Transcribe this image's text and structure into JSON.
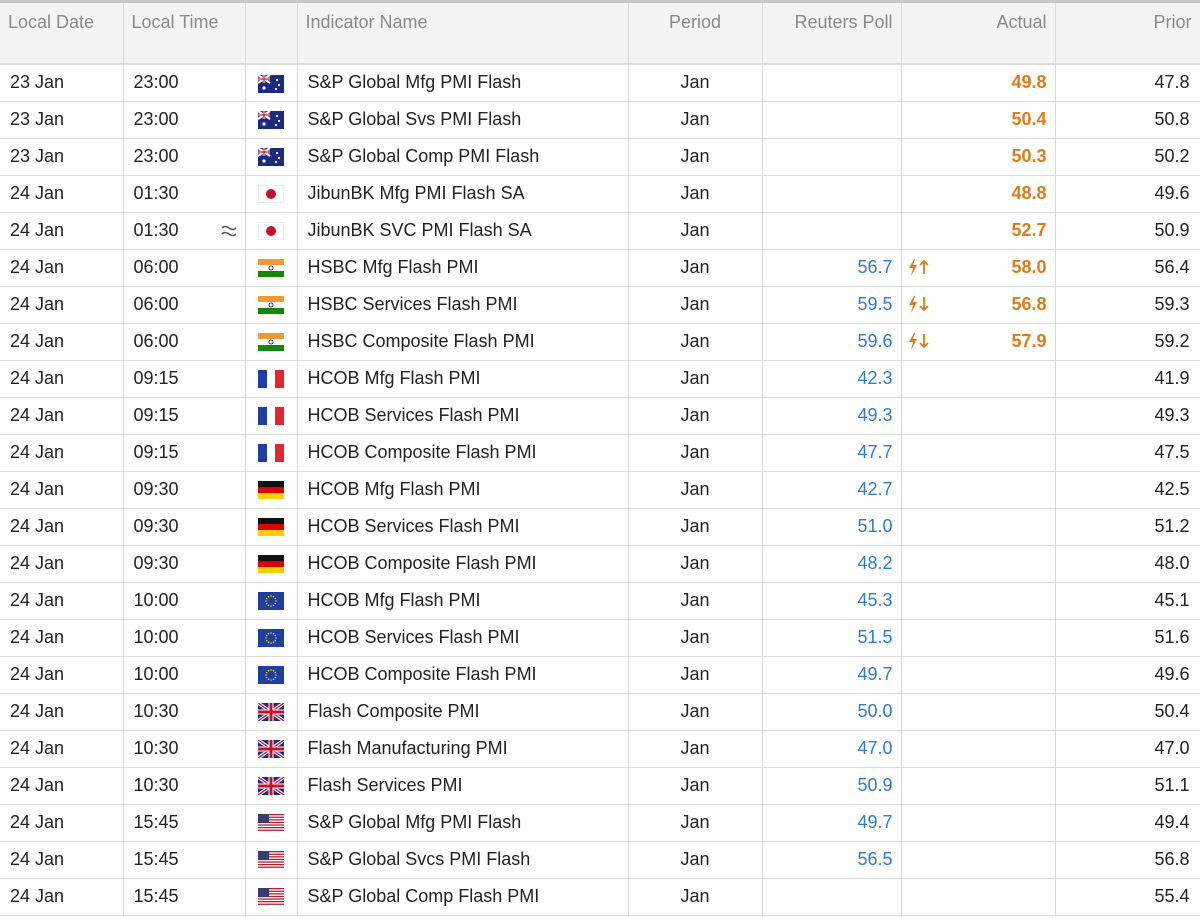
{
  "table": {
    "headers": [
      "Local Date",
      "Local Time",
      "Indicator Name",
      "Period",
      "Reuters Poll",
      "Actual",
      "Prior"
    ],
    "rows": [
      [
        "23 Jan",
        "23:00",
        "S&P Global Mfg PMI Flash",
        "Jan",
        null,
        "49.8",
        "47.8"
      ],
      [
        "23 Jan",
        "23:00",
        "S&P Global Svs PMI Flash",
        "Jan",
        null,
        "50.4",
        "50.8"
      ],
      [
        "23 Jan",
        "23:00",
        "S&P Global Comp PMI Flash",
        "Jan",
        null,
        "50.3",
        "50.2"
      ],
      [
        "24 Jan",
        "01:30",
        "JibunBK Mfg PMI Flash SA",
        "Jan",
        null,
        "48.8",
        "49.6"
      ],
      [
        "24 Jan",
        "01:30",
        "JibunBK SVC PMI Flash SA",
        "Jan",
        null,
        "52.7",
        "50.9"
      ],
      [
        "24 Jan",
        "06:00",
        "HSBC Mfg Flash PMI",
        "Jan",
        "56.7",
        "58.0",
        "56.4"
      ],
      [
        "24 Jan",
        "06:00",
        "HSBC Services Flash PMI",
        "Jan",
        "59.5",
        "56.8",
        "59.3"
      ],
      [
        "24 Jan",
        "06:00",
        "HSBC Composite Flash PMI",
        "Jan",
        "59.6",
        "57.9",
        "59.2"
      ],
      [
        "24 Jan",
        "09:15",
        "HCOB Mfg Flash PMI",
        "Jan",
        "42.3",
        null,
        "41.9"
      ],
      [
        "24 Jan",
        "09:15",
        "HCOB Services Flash PMI",
        "Jan",
        "49.3",
        null,
        "49.3"
      ],
      [
        "24 Jan",
        "09:15",
        "HCOB Composite Flash PMI",
        "Jan",
        "47.7",
        null,
        "47.5"
      ],
      [
        "24 Jan",
        "09:30",
        "HCOB Mfg Flash PMI",
        "Jan",
        "42.7",
        null,
        "42.5"
      ],
      [
        "24 Jan",
        "09:30",
        "HCOB Services Flash PMI",
        "Jan",
        "51.0",
        null,
        "51.2"
      ],
      [
        "24 Jan",
        "09:30",
        "HCOB Composite Flash PMI",
        "Jan",
        "48.2",
        null,
        "48.0"
      ],
      [
        "24 Jan",
        "10:00",
        "HCOB Mfg Flash PMI",
        "Jan",
        "45.3",
        null,
        "45.1"
      ],
      [
        "24 Jan",
        "10:00",
        "HCOB Services Flash PMI",
        "Jan",
        "51.5",
        null,
        "51.6"
      ],
      [
        "24 Jan",
        "10:00",
        "HCOB Composite Flash PMI",
        "Jan",
        "49.7",
        null,
        "49.6"
      ],
      [
        "24 Jan",
        "10:30",
        "Flash Composite PMI",
        "Jan",
        "50.0",
        null,
        "50.4"
      ],
      [
        "24 Jan",
        "10:30",
        "Flash Manufacturing PMI",
        "Jan",
        "47.0",
        null,
        "47.0"
      ],
      [
        "24 Jan",
        "10:30",
        "Flash Services PMI",
        "Jan",
        "50.9",
        null,
        "51.1"
      ],
      [
        "24 Jan",
        "15:45",
        "S&P Global Mfg PMI Flash",
        "Jan",
        "49.7",
        null,
        "49.4"
      ],
      [
        "24 Jan",
        "15:45",
        "S&P Global Svcs PMI Flash",
        "Jan",
        "56.5",
        null,
        "56.8"
      ],
      [
        "24 Jan",
        "15:45",
        "S&P Global Comp Flash PMI",
        "Jan",
        null,
        null,
        "55.4"
      ]
    ]
  }
}
